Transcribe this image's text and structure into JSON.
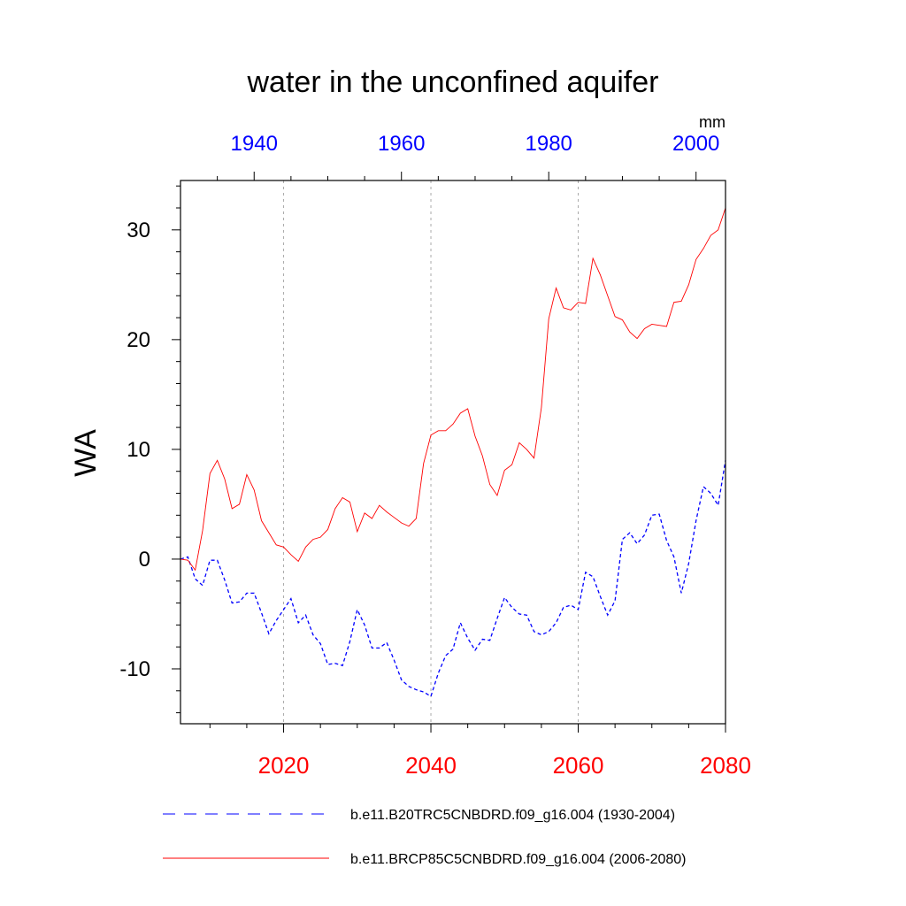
{
  "chart_data": {
    "type": "line",
    "title": "water in the unconfined aquifer",
    "units": "mm",
    "ylabel": "WA",
    "ylim": [
      -15,
      34.5
    ],
    "y_ticks": [
      -10,
      0,
      10,
      20,
      30
    ],
    "bottom_axis": {
      "range": [
        2006,
        2080
      ],
      "ticks": [
        2020,
        2040,
        2060,
        2080
      ],
      "color": "#ff0000"
    },
    "top_axis": {
      "range": [
        1930,
        2004
      ],
      "ticks": [
        1940,
        1960,
        1980,
        2000
      ],
      "color": "#0000ff"
    },
    "gridlines_bottom_years": [
      2020,
      2040,
      2060
    ],
    "series": [
      {
        "name": "b.e11.B20TRC5CNBDRD.f09_g16.004 (1930-2004)",
        "axis": "top",
        "color": "#0000ff",
        "dash": "dashed",
        "x_start": 1930,
        "values": [
          0.0,
          0.2,
          -1.8,
          -2.4,
          -0.1,
          -0.1,
          -1.9,
          -4.0,
          -3.9,
          -3.1,
          -3.1,
          -4.9,
          -6.8,
          -5.6,
          -4.6,
          -3.6,
          -5.8,
          -5.1,
          -6.9,
          -7.7,
          -9.6,
          -9.5,
          -9.7,
          -7.5,
          -4.6,
          -6.0,
          -8.1,
          -8.1,
          -7.6,
          -9.2,
          -11.0,
          -11.6,
          -11.9,
          -12.1,
          -12.5,
          -10.4,
          -8.8,
          -8.2,
          -5.8,
          -7.2,
          -8.3,
          -7.3,
          -7.4,
          -5.4,
          -3.5,
          -4.4,
          -5.0,
          -5.1,
          -6.6,
          -6.9,
          -6.6,
          -5.8,
          -4.4,
          -4.2,
          -4.6,
          -1.2,
          -1.6,
          -3.4,
          -5.1,
          -3.8,
          1.8,
          2.4,
          1.4,
          2.2,
          4.0,
          4.1,
          1.7,
          0.2,
          -3.1,
          -0.4,
          3.5,
          6.6,
          6.0,
          4.9,
          9.0
        ]
      },
      {
        "name": "b.e11.BRCP85C5CNBDRD.f09_g16.004 (2006-2080)",
        "axis": "bottom",
        "color": "#ff0000",
        "dash": "solid",
        "x_start": 2006,
        "values": [
          0.0,
          -0.1,
          -1.0,
          2.6,
          7.8,
          9.0,
          7.3,
          4.6,
          5.0,
          7.7,
          6.3,
          3.5,
          2.4,
          1.3,
          1.1,
          0.4,
          -0.2,
          1.1,
          1.8,
          2.0,
          2.7,
          4.6,
          5.6,
          5.2,
          2.5,
          4.2,
          3.7,
          4.9,
          4.3,
          3.8,
          3.3,
          3.0,
          3.7,
          8.7,
          11.3,
          11.7,
          11.7,
          12.3,
          13.3,
          13.7,
          11.2,
          9.4,
          6.8,
          5.8,
          8.1,
          8.6,
          10.6,
          10.0,
          9.2,
          13.8,
          21.9,
          24.7,
          22.9,
          22.7,
          23.4,
          23.3,
          27.4,
          25.9,
          24.0,
          22.1,
          21.8,
          20.7,
          20.1,
          21.0,
          21.4,
          21.3,
          21.2,
          23.4,
          23.5,
          25.0,
          27.3,
          28.3,
          29.5,
          30.0,
          32.0
        ]
      }
    ]
  }
}
